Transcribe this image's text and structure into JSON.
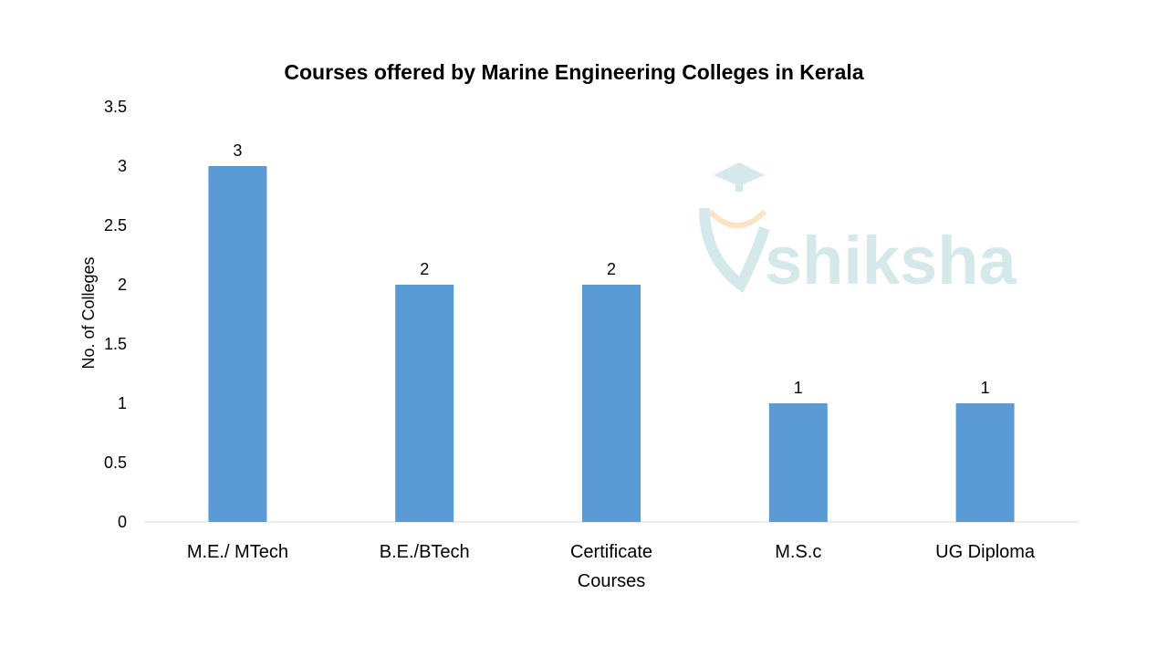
{
  "chart_data": {
    "type": "bar",
    "title": "Courses offered by Marine Engineering Colleges in Kerala",
    "xlabel": "Courses",
    "ylabel": "No. of Colleges",
    "categories": [
      "M.E./ MTech",
      "B.E./BTech",
      "Certificate",
      "M.S.c",
      "UG Diploma"
    ],
    "values": [
      3,
      2,
      2,
      1,
      1
    ],
    "data_labels": [
      "3",
      "2",
      "2",
      "1",
      "1"
    ],
    "ylim": [
      0,
      3.5
    ],
    "yticks": [
      "0",
      "0.5",
      "1",
      "1.5",
      "2",
      "2.5",
      "3",
      "3.5"
    ],
    "grid": false,
    "legend": "none",
    "bar_color": "#5b9bd5"
  },
  "watermark": {
    "text": "shiksha",
    "icon": "graduate-cap-logo-icon",
    "color": "#d5e8ea",
    "accent": "#fbe3c4"
  }
}
